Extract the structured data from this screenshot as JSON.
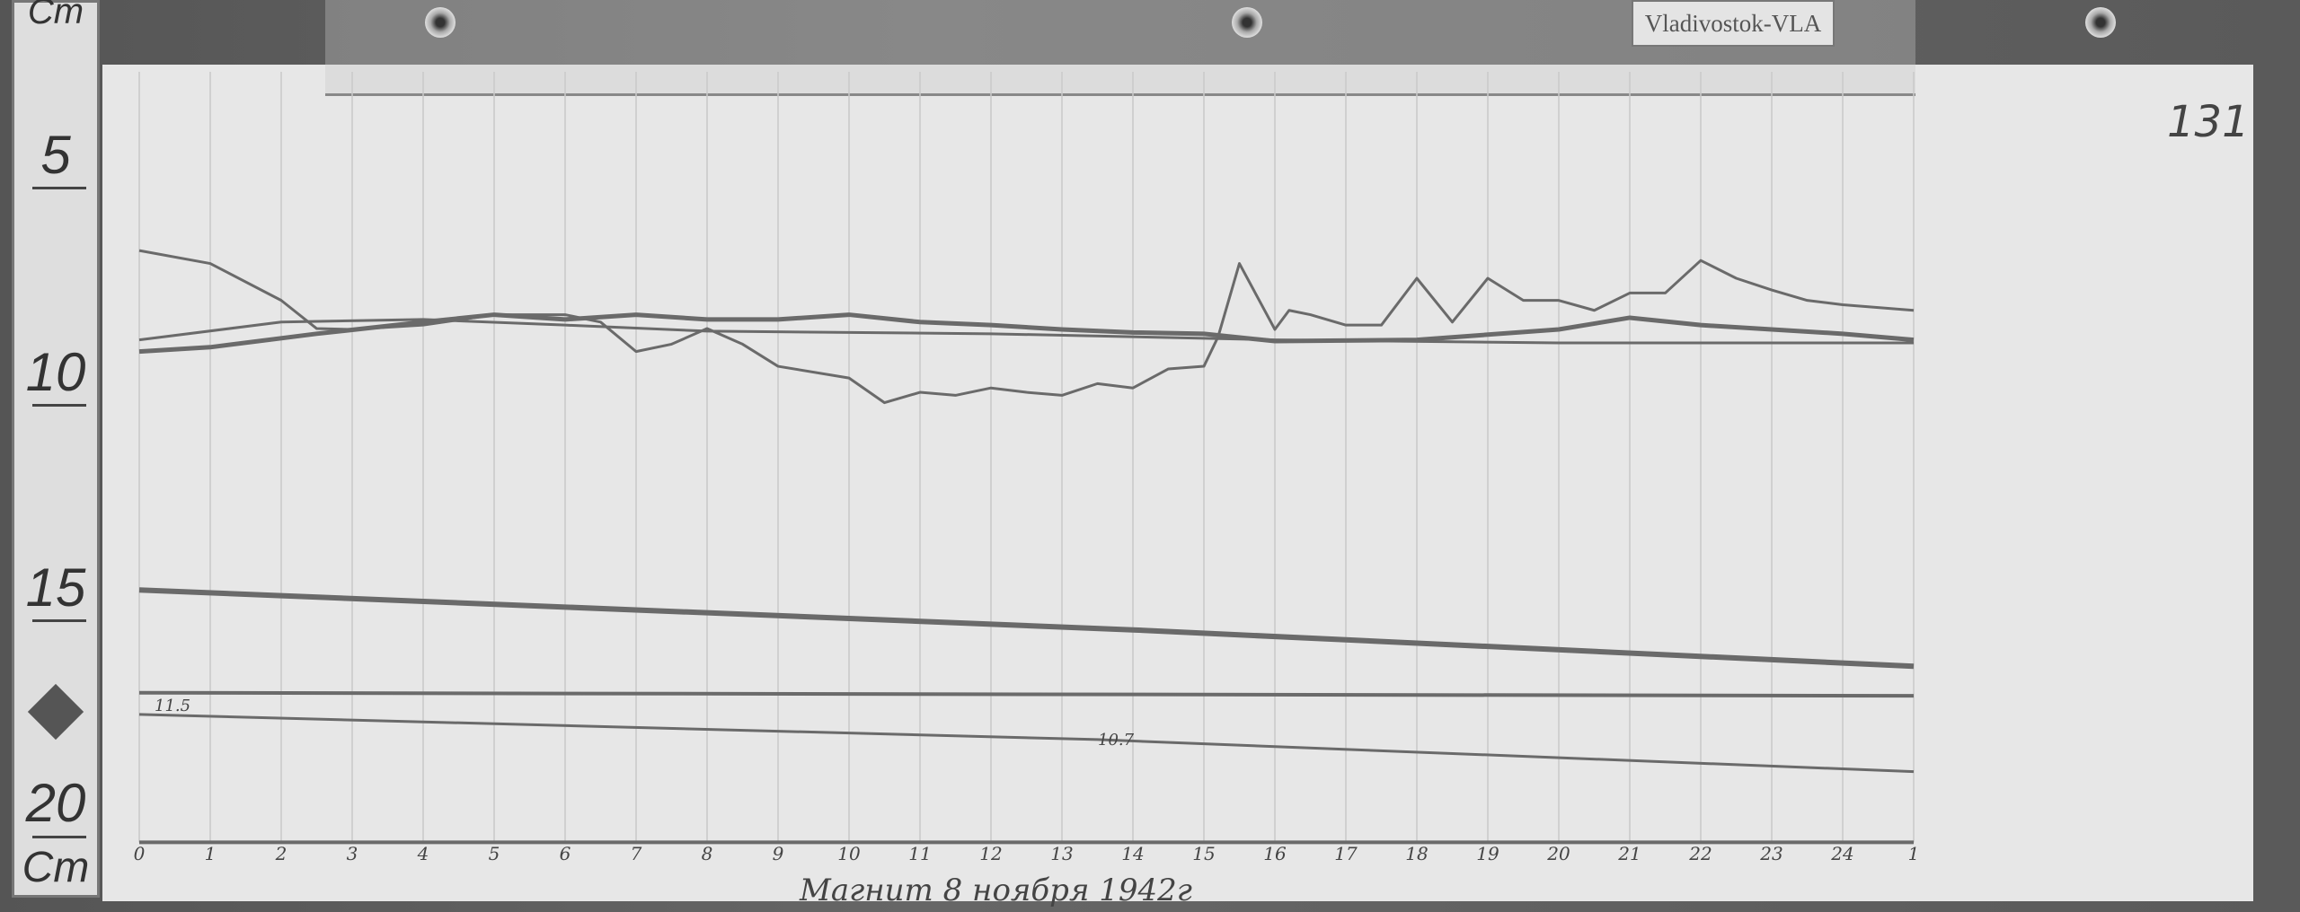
{
  "station_label": "Vladivostok-VLA",
  "sheet_number": "131",
  "caption": "Магнит 8 ноября 1942г",
  "ruler": {
    "unit": "Cm",
    "marks": [
      "5",
      "10",
      "15",
      "20"
    ]
  },
  "annotations": {
    "h_start_value": "11.5",
    "h_mid_value": "10.7"
  },
  "colors": {
    "trace": "#6a6a6a",
    "paper": "#e7e7e7",
    "grid": "#c9c9c9"
  },
  "chart_data": {
    "type": "line",
    "title": "",
    "xlabel": "",
    "ylabel": "Cm",
    "x_tick_labels": [
      "0",
      "1",
      "2",
      "3",
      "4",
      "5",
      "6",
      "7",
      "8",
      "9",
      "10",
      "11",
      "12",
      "13",
      "14",
      "15",
      "16",
      "17",
      "18",
      "19",
      "20",
      "21",
      "22",
      "23",
      "24",
      "1"
    ],
    "xlim": [
      0,
      25
    ],
    "ylim": [
      21,
      4
    ],
    "y_inverted": true,
    "grid": "vertical",
    "series": [
      {
        "x": [
          0,
          1,
          2,
          2.5,
          3,
          4,
          5,
          6,
          6.5,
          7,
          7.5,
          8,
          8.5,
          9,
          10,
          10.5,
          11,
          11.5,
          12,
          12.5,
          13,
          13.5,
          14,
          14.5,
          15,
          15.2,
          15.5,
          16,
          16.2,
          16.5,
          17,
          17.5,
          18,
          18.5,
          19,
          19.5,
          20,
          20.5,
          21,
          21.5,
          22,
          22.5,
          23,
          23.5,
          24,
          25
        ],
        "y": [
          7.3,
          7.6,
          8.45,
          9.1,
          9.12,
          9.02,
          8.78,
          8.78,
          8.95,
          9.63,
          9.46,
          9.1,
          9.46,
          9.97,
          10.24,
          10.81,
          10.57,
          10.64,
          10.47,
          10.57,
          10.64,
          10.37,
          10.47,
          10.03,
          9.97,
          9.29,
          7.6,
          9.12,
          8.68,
          8.78,
          9.02,
          9.02,
          7.94,
          8.95,
          7.94,
          8.45,
          8.45,
          8.68,
          8.28,
          8.28,
          7.53,
          7.94,
          8.21,
          8.45,
          8.55,
          8.68
        ]
      },
      {
        "x": [
          0,
          1,
          2.5,
          4,
          5,
          6,
          7,
          8,
          9,
          10,
          11,
          12,
          13,
          14,
          15,
          16,
          18,
          20,
          21,
          22,
          23,
          24,
          25
        ],
        "y": [
          9.63,
          9.53,
          9.22,
          8.95,
          8.78,
          8.89,
          8.78,
          8.89,
          8.89,
          8.78,
          8.95,
          9.02,
          9.12,
          9.19,
          9.22,
          9.39,
          9.36,
          9.12,
          8.85,
          9.02,
          9.12,
          9.22,
          9.36
        ]
      },
      {
        "x": [
          0,
          2,
          4,
          6,
          8,
          12,
          16,
          20,
          25
        ],
        "y": [
          9.36,
          8.95,
          8.89,
          9.02,
          9.16,
          9.22,
          9.36,
          9.43,
          9.43
        ]
      },
      {
        "x": [
          0,
          14,
          25
        ],
        "y": [
          15.13,
          16.05,
          16.89
        ]
      },
      {
        "x": [
          0,
          25
        ],
        "y": [
          17.5,
          17.57
        ]
      },
      {
        "x": [
          0,
          13.5,
          25
        ],
        "y": [
          18.0,
          18.58,
          19.32
        ]
      },
      {
        "x": [
          0,
          25
        ],
        "y": [
          20.95,
          20.95
        ]
      }
    ]
  }
}
